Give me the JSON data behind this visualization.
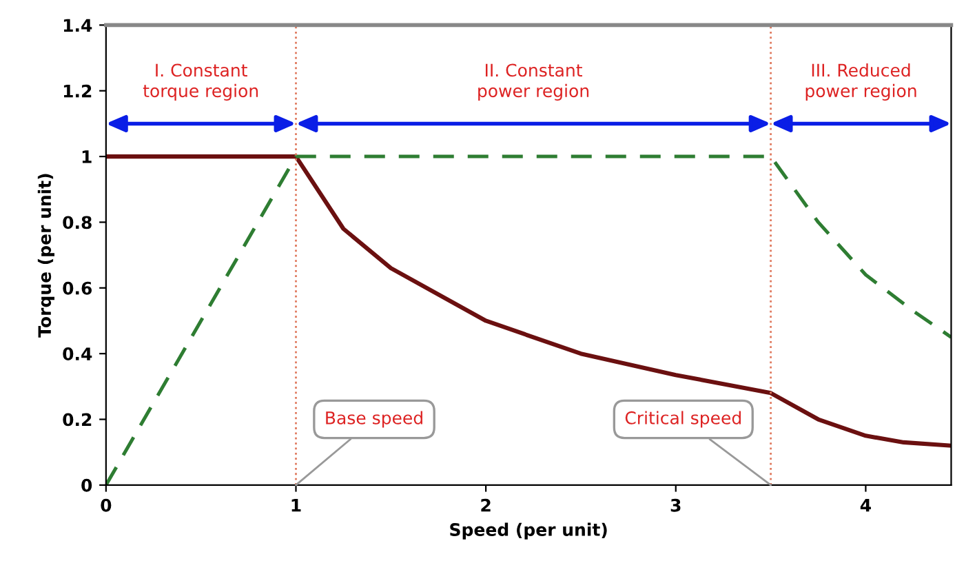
{
  "chart_data": {
    "type": "line",
    "xlabel": "Speed (per unit)",
    "ylabel": "Torque (per unit)",
    "xlim": [
      0,
      4.45
    ],
    "ylim": [
      0,
      1.4
    ],
    "xticks": [
      0,
      1,
      2,
      3,
      4
    ],
    "yticks": [
      0,
      0.2,
      0.4,
      0.6,
      0.8,
      1,
      1.2,
      1.4
    ],
    "grid": false,
    "marker": "none",
    "series": [
      {
        "color": "#6b1010",
        "line_style": "solid",
        "x": [
          0,
          1,
          1.25,
          1.5,
          2,
          2.5,
          3,
          3.5,
          3.75,
          4,
          4.2,
          4.45
        ],
        "values": [
          1,
          1,
          0.78,
          0.66,
          0.5,
          0.4,
          0.335,
          0.28,
          0.2,
          0.15,
          0.13,
          0.12
        ]
      },
      {
        "color": "#2e7d32",
        "line_style": "dashed",
        "x": [
          0,
          1,
          3.5,
          3.75,
          4,
          4.25,
          4.45
        ],
        "values": [
          0,
          1,
          1,
          0.8,
          0.64,
          0.53,
          0.45
        ]
      }
    ],
    "ref_lines": [
      {
        "axis": "x",
        "value": 1,
        "label": "Base speed",
        "color": "#e07a5f",
        "line_style": "dotted"
      },
      {
        "axis": "x",
        "value": 3.5,
        "label": "Critical speed",
        "color": "#e07a5f",
        "line_style": "dotted"
      }
    ],
    "annotations": [
      "I. Constant\ntorque region",
      "II. Constant\npower region",
      "III. Reduced\npower region"
    ]
  }
}
